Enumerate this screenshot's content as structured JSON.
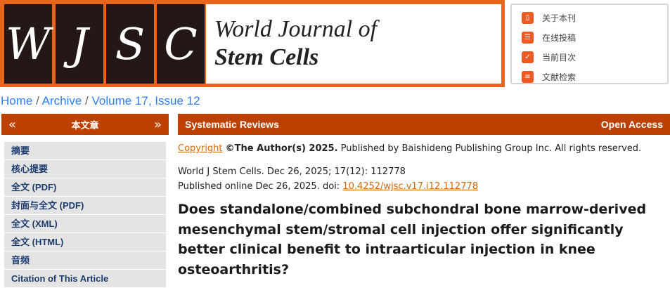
{
  "logo": {
    "letters": [
      "W",
      "J",
      "S",
      "C"
    ],
    "line1": "World Journal of",
    "line2": "Stem Cells"
  },
  "quick_links": [
    {
      "label": "关于本刊",
      "icon": "book-icon"
    },
    {
      "label": "在线投稿",
      "icon": "submit-icon"
    },
    {
      "label": "当前目次",
      "icon": "clipboard-check-icon"
    },
    {
      "label": "文献检索",
      "icon": "document-search-icon"
    }
  ],
  "breadcrumb": {
    "home": "Home",
    "archive": "Archive",
    "issue": "Volume 17, Issue 12",
    "sep": "/"
  },
  "sidebar": {
    "title": "本文章",
    "prev": "«",
    "next": "»",
    "items": [
      "摘要",
      "核心提要",
      "全文 (PDF)",
      "封面与全文 (PDF)",
      "全文 (XML)",
      "全文 (HTML)",
      "音频",
      "Citation of This Article"
    ]
  },
  "article": {
    "section": "Systematic Reviews",
    "access": "Open Access",
    "copyright_link": "Copyright",
    "copyright_bold": "©The Author(s) 2025.",
    "copyright_rest": "Published by Baishideng Publishing Group Inc. All rights reserved.",
    "citation": "World J Stem Cells. Dec 26, 2025; 17(12): 112778",
    "published": "Published online Dec 26, 2025. doi:",
    "doi": "10.4252/wjsc.v17.i12.112778",
    "title": "Does standalone/combined subchondral bone marrow-derived mesenchymal stem/stromal cell injection offer significantly better clinical benefit to intraarticular injection in knee osteoarthritis?"
  },
  "colors": {
    "brand_orange": "#e8661c",
    "header_bar": "#bc4100",
    "link_blue": "#2f7ff0"
  }
}
